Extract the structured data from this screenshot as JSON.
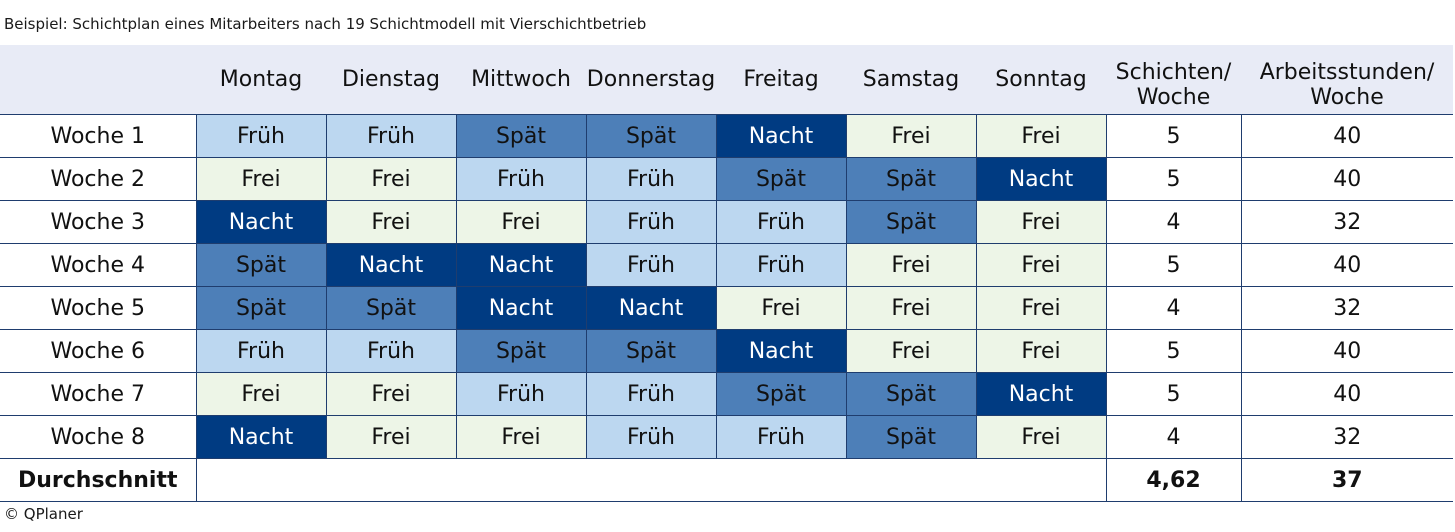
{
  "caption": "Beispiel: Schichtplan eines Mitarbeiters nach 19 Schichtmodell mit Vierschichtbetrieb",
  "footer": "© QPlaner",
  "header": {
    "days": [
      "Montag",
      "Dienstag",
      "Mittwoch",
      "Donnerstag",
      "Freitag",
      "Samstag",
      "Sonntag"
    ],
    "shifts_line1": "Schichten/",
    "shifts_line2": "Woche",
    "hours_line1": "Arbeitsstunden/",
    "hours_line2": "Woche"
  },
  "colors": {
    "Früh": "#bcd7f0",
    "Spät": "#4d7fb8",
    "Nacht": "#003b82",
    "Frei": "#edf5e7",
    "header_bg": "#e8ebf6",
    "grid": "#1f3d6e"
  },
  "weeks": [
    {
      "label": "Woche 1",
      "days": [
        "Früh",
        "Früh",
        "Spät",
        "Spät",
        "Nacht",
        "Frei",
        "Frei"
      ],
      "shifts": "5",
      "hours": "40"
    },
    {
      "label": "Woche 2",
      "days": [
        "Frei",
        "Frei",
        "Früh",
        "Früh",
        "Spät",
        "Spät",
        "Nacht"
      ],
      "shifts": "5",
      "hours": "40"
    },
    {
      "label": "Woche 3",
      "days": [
        "Nacht",
        "Frei",
        "Frei",
        "Früh",
        "Früh",
        "Spät",
        "Frei"
      ],
      "shifts": "4",
      "hours": "32"
    },
    {
      "label": "Woche 4",
      "days": [
        "Spät",
        "Nacht",
        "Nacht",
        "Früh",
        "Früh",
        "Frei",
        "Frei"
      ],
      "shifts": "5",
      "hours": "40"
    },
    {
      "label": "Woche 5",
      "days": [
        "Spät",
        "Spät",
        "Nacht",
        "Nacht",
        "Frei",
        "Frei",
        "Frei"
      ],
      "shifts": "4",
      "hours": "32"
    },
    {
      "label": "Woche 6",
      "days": [
        "Früh",
        "Früh",
        "Spät",
        "Spät",
        "Nacht",
        "Frei",
        "Frei"
      ],
      "shifts": "5",
      "hours": "40"
    },
    {
      "label": "Woche 7",
      "days": [
        "Frei",
        "Frei",
        "Früh",
        "Früh",
        "Spät",
        "Spät",
        "Nacht"
      ],
      "shifts": "5",
      "hours": "40"
    },
    {
      "label": "Woche 8",
      "days": [
        "Nacht",
        "Frei",
        "Frei",
        "Früh",
        "Früh",
        "Spät",
        "Frei"
      ],
      "shifts": "4",
      "hours": "32"
    }
  ],
  "average": {
    "label": "Durchschnitt",
    "shifts": "4,62",
    "hours": "37"
  }
}
